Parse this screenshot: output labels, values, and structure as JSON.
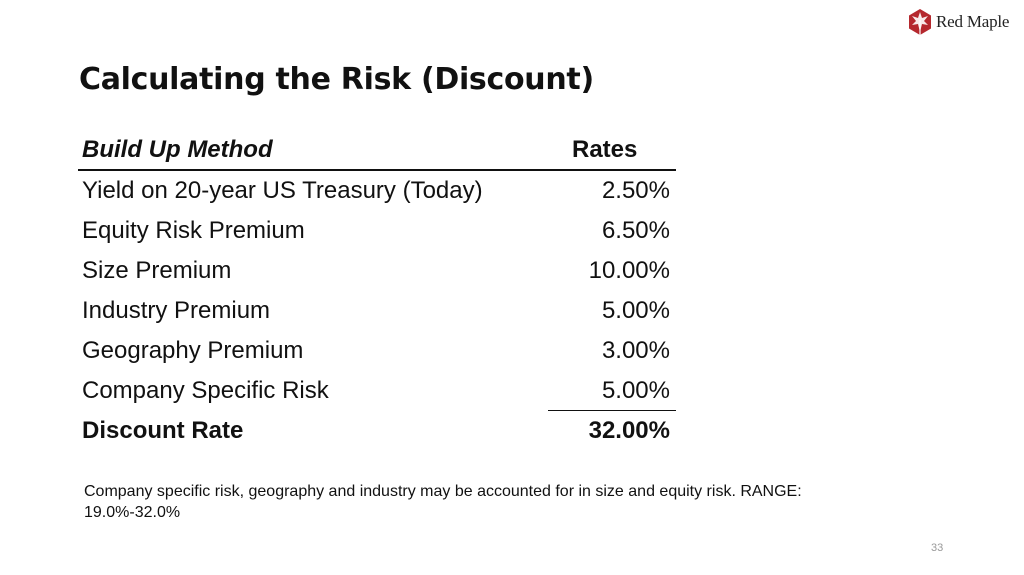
{
  "brand": {
    "name": "Red Maple",
    "icon": "maple-leaf-icon",
    "color": "#b5282e"
  },
  "slide": {
    "title": "Calculating the Risk (Discount)",
    "page_number": "33"
  },
  "table": {
    "headers": {
      "method": "Build Up Method",
      "rates": "Rates"
    },
    "rows": [
      {
        "label": "Yield on 20-year US Treasury (Today)",
        "value": "2.50%"
      },
      {
        "label": "Equity Risk Premium",
        "value": "6.50%"
      },
      {
        "label": "Size Premium",
        "value": "10.00%"
      },
      {
        "label": "Industry Premium",
        "value": "5.00%"
      },
      {
        "label": "Geography Premium",
        "value": "3.00%"
      },
      {
        "label": "Company Specific Risk",
        "value": "5.00%"
      }
    ],
    "total": {
      "label": "Discount Rate",
      "value": "32.00%"
    }
  },
  "note": "Company specific risk, geography and industry may be accounted for in size and equity risk. RANGE: 19.0%-32.0%"
}
